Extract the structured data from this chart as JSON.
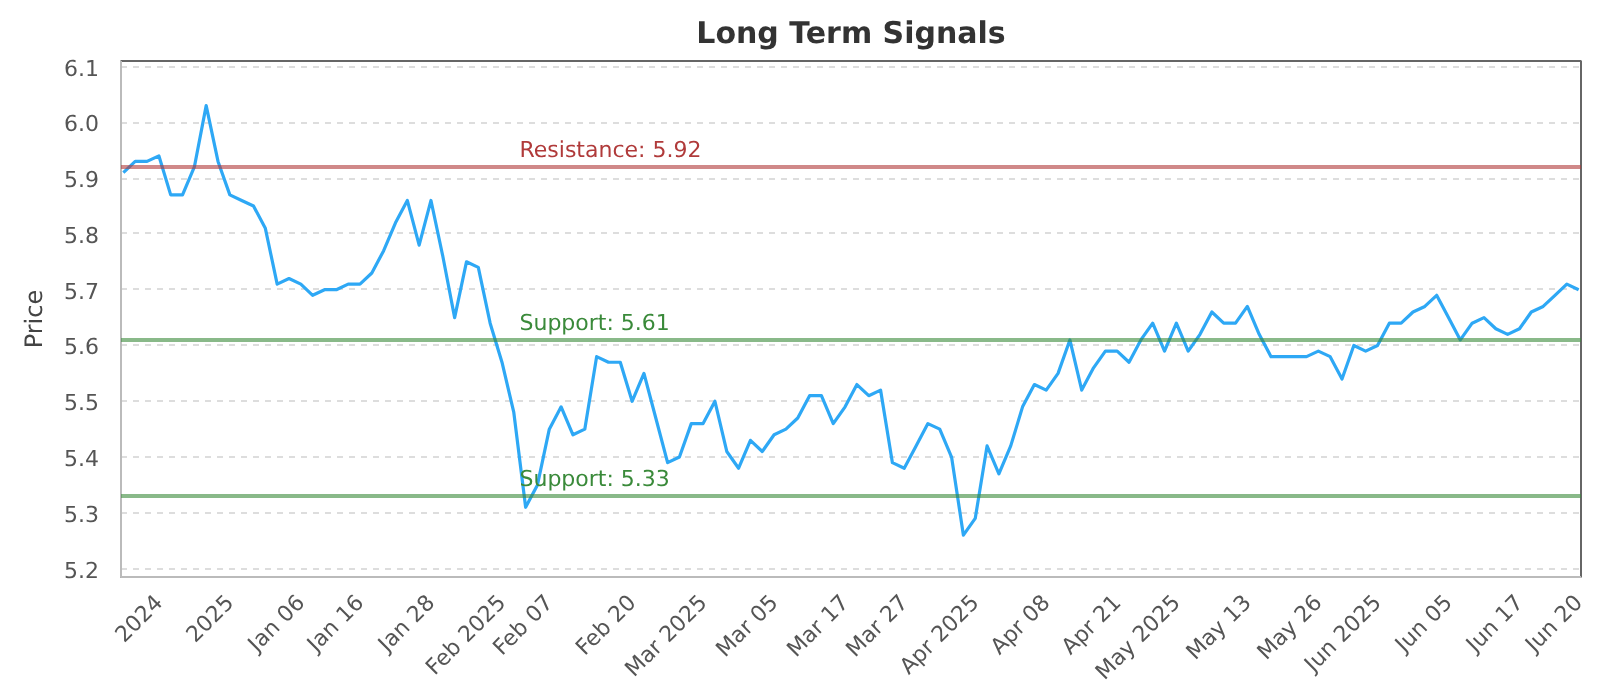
{
  "chart_data": {
    "type": "line",
    "title": "Long Term Signals",
    "ylabel": "Price",
    "categories": [
      null,
      null,
      null,
      "2024",
      null,
      null,
      null,
      null,
      null,
      "2025",
      null,
      null,
      null,
      null,
      null,
      "Jan 06",
      null,
      null,
      null,
      null,
      "Jan 16",
      null,
      null,
      null,
      null,
      null,
      "Jan 28",
      null,
      null,
      null,
      null,
      null,
      "Feb 2025",
      null,
      null,
      null,
      "Feb 07",
      null,
      null,
      null,
      null,
      null,
      null,
      "Feb 20",
      null,
      null,
      null,
      null,
      null,
      "Mar 2025",
      null,
      null,
      null,
      null,
      null,
      "Mar 05",
      null,
      null,
      null,
      null,
      null,
      "Mar 17",
      null,
      null,
      null,
      null,
      "Mar 27",
      null,
      null,
      null,
      null,
      null,
      "Apr 2025",
      null,
      null,
      null,
      null,
      null,
      "Apr 08",
      null,
      null,
      null,
      null,
      null,
      "Apr 21",
      null,
      null,
      null,
      null,
      "May 2025",
      null,
      null,
      null,
      null,
      null,
      "May 13",
      null,
      null,
      null,
      null,
      null,
      "May 26",
      null,
      null,
      null,
      null,
      "Jun 2025",
      null,
      null,
      null,
      null,
      null,
      "Jun 05",
      null,
      null,
      null,
      null,
      null,
      "Jun 17",
      null,
      null,
      null,
      null,
      "Jun 20"
    ],
    "series": [
      {
        "color": "#2ea8f5",
        "values": [
          5.91,
          5.93,
          5.93,
          5.94,
          5.87,
          5.87,
          5.92,
          6.03,
          5.93,
          5.87,
          5.86,
          5.85,
          5.81,
          5.71,
          5.72,
          5.71,
          5.69,
          5.7,
          5.7,
          5.71,
          5.71,
          5.73,
          5.77,
          5.82,
          5.86,
          5.78,
          5.86,
          5.76,
          5.65,
          5.75,
          5.74,
          5.64,
          5.57,
          5.48,
          5.31,
          5.35,
          5.45,
          5.49,
          5.44,
          5.45,
          5.58,
          5.57,
          5.57,
          5.5,
          5.55,
          5.47,
          5.39,
          5.4,
          5.46,
          5.46,
          5.5,
          5.41,
          5.38,
          5.43,
          5.41,
          5.44,
          5.45,
          5.47,
          5.51,
          5.51,
          5.46,
          5.49,
          5.53,
          5.51,
          5.52,
          5.39,
          5.38,
          5.42,
          5.46,
          5.45,
          5.4,
          5.26,
          5.29,
          5.42,
          5.37,
          5.42,
          5.49,
          5.53,
          5.52,
          5.55,
          5.61,
          5.52,
          5.56,
          5.59,
          5.59,
          5.57,
          5.61,
          5.64,
          5.59,
          5.64,
          5.59,
          5.62,
          5.66,
          5.64,
          5.64,
          5.67,
          5.62,
          5.58,
          5.58,
          5.58,
          5.58,
          5.59,
          5.58,
          5.54,
          5.6,
          5.59,
          5.6,
          5.64,
          5.64,
          5.66,
          5.67,
          5.69,
          5.65,
          5.61,
          5.64,
          5.65,
          5.63,
          5.62,
          5.63,
          5.66,
          5.67,
          5.69,
          5.71,
          5.7
        ]
      }
    ],
    "ylim": [
      5.185,
      6.11
    ],
    "yticks": [
      5.2,
      5.3,
      5.4,
      5.5,
      5.6,
      5.7,
      5.8,
      5.9,
      {
        "value": 6.0,
        "label": "6.0"
      },
      6.1
    ],
    "grid": "y",
    "marker": "none",
    "line_style": "solid",
    "ref_lines": [
      {
        "axis": "y",
        "value": 5.92,
        "label": "Resistance: 5.92",
        "color": "#b03a3a"
      },
      {
        "axis": "y",
        "value": 5.61,
        "label": "Support: 5.61",
        "color": "#3a8a3a"
      },
      {
        "axis": "y",
        "value": 5.33,
        "label": "Support: 5.33",
        "color": "#3a8a3a"
      }
    ]
  }
}
